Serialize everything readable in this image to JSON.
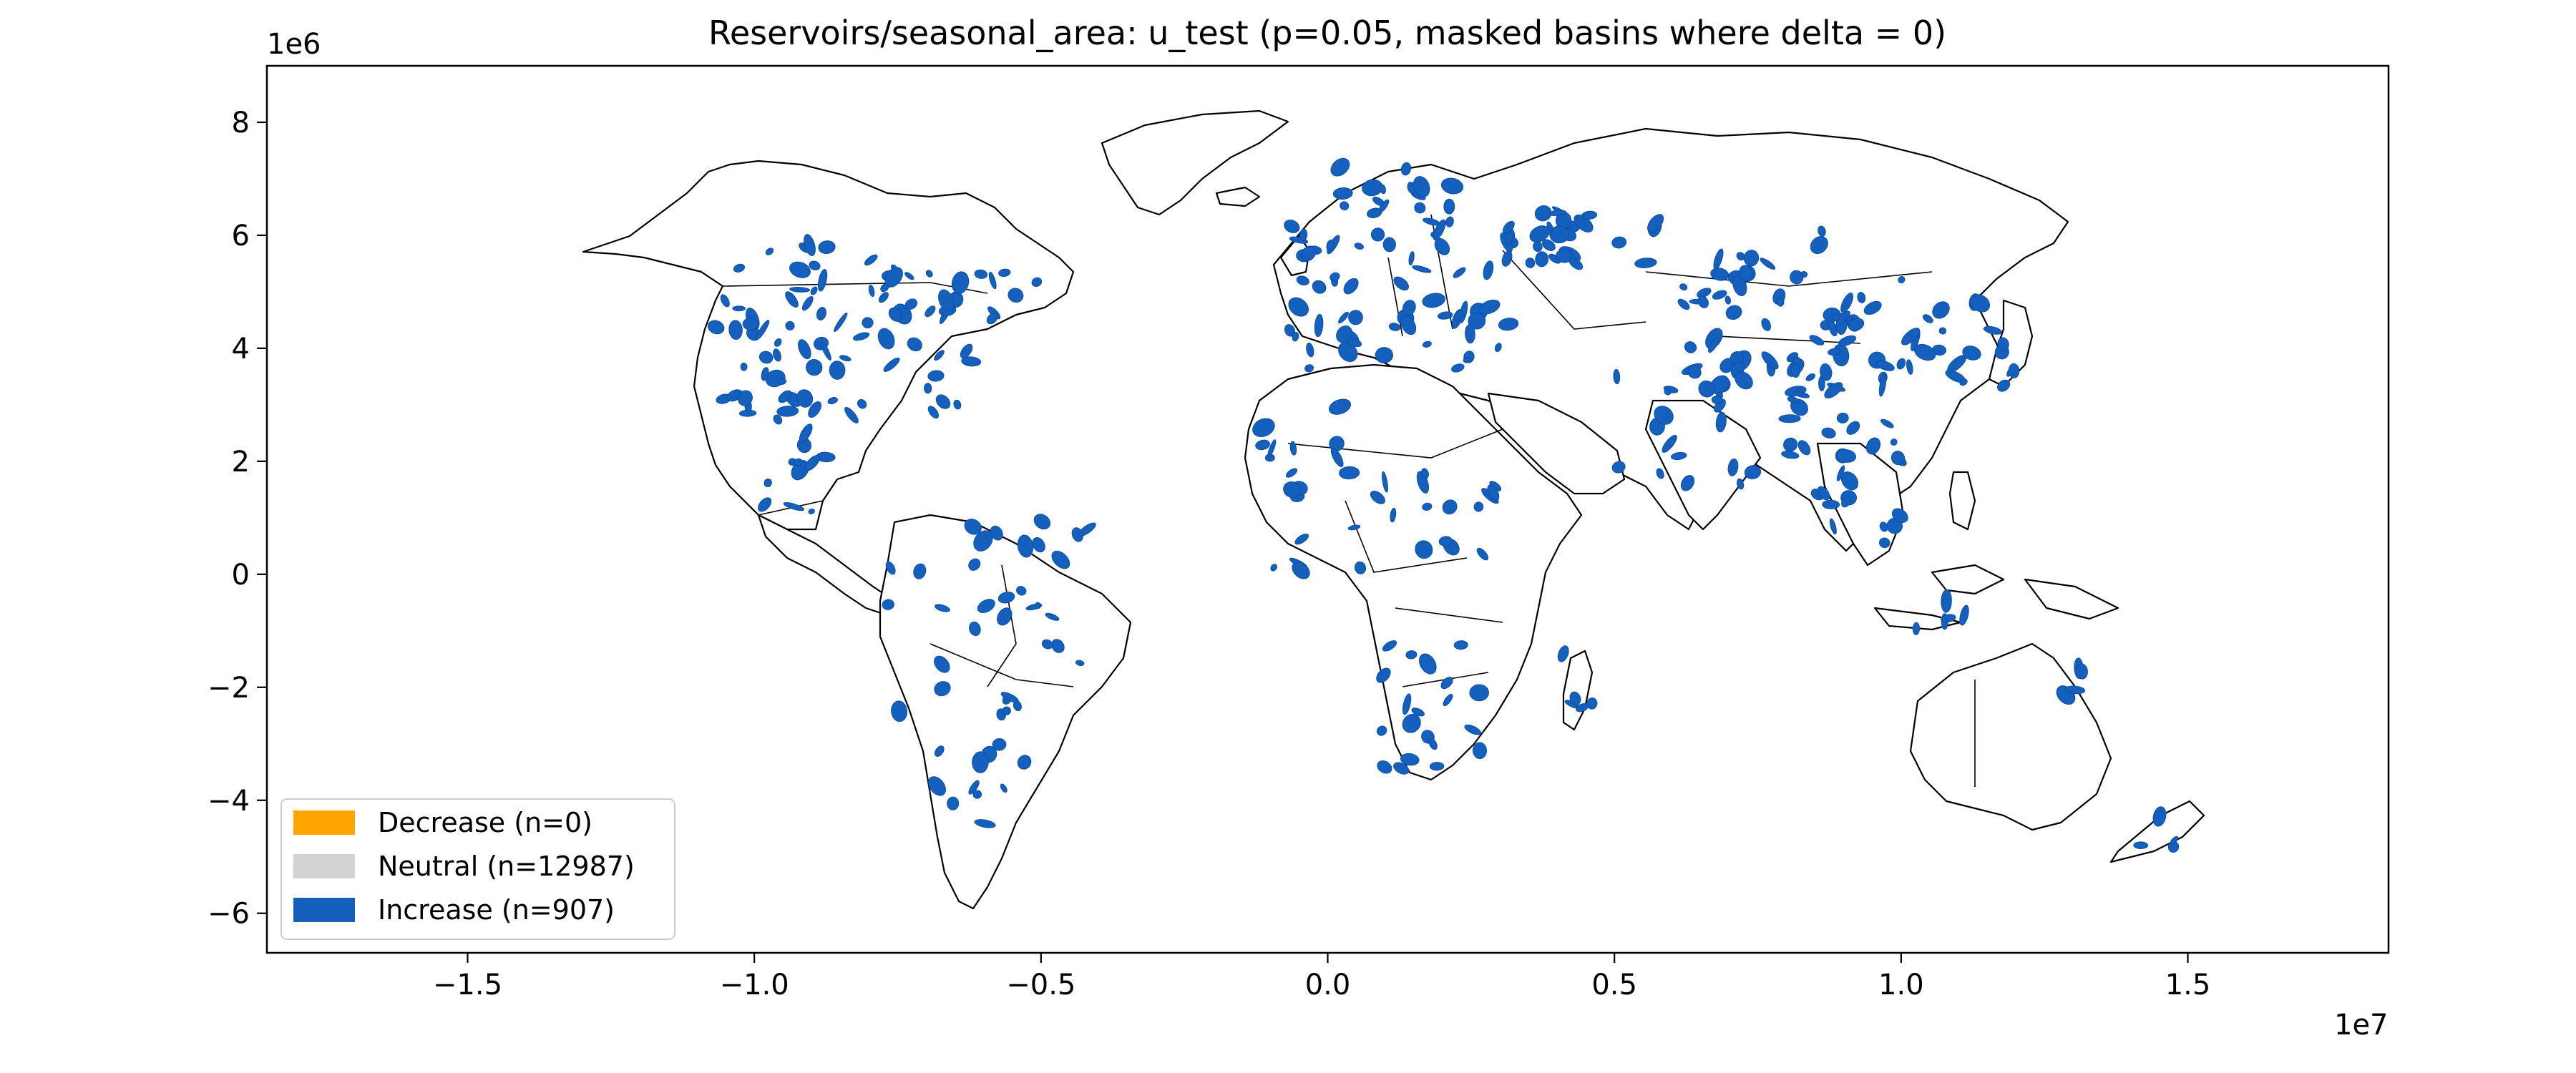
{
  "chart_data": {
    "type": "choropleth-map",
    "title": "Reservoirs/seasonal_area: u_test (p=0.05, masked basins where delta = 0)",
    "x_ticks": [
      -1.5,
      -1.0,
      -0.5,
      0.0,
      0.5,
      1.0,
      1.5
    ],
    "x_tick_labels": [
      "−1.5",
      "−1.0",
      "−0.5",
      "0.0",
      "0.5",
      "1.0",
      "1.5"
    ],
    "x_multiplier": "1e7",
    "x_range": [
      -1.85,
      1.85
    ],
    "y_ticks": [
      -6,
      -4,
      -2,
      0,
      2,
      4,
      6,
      8
    ],
    "y_tick_labels": [
      "−6",
      "−4",
      "−2",
      "0",
      "2",
      "4",
      "6",
      "8"
    ],
    "y_multiplier": "1e6",
    "y_range": [
      -6.7,
      9.0
    ],
    "legend_position": "lower-left",
    "legend": [
      {
        "label": "Decrease (n=0)",
        "color": "#ffa500"
      },
      {
        "label": "Neutral (n=12987)",
        "color": "#d3d3d3"
      },
      {
        "label": "Increase (n=907)",
        "color": "#1560bd"
      }
    ],
    "increase_color": "#1560bd",
    "grid": false
  }
}
